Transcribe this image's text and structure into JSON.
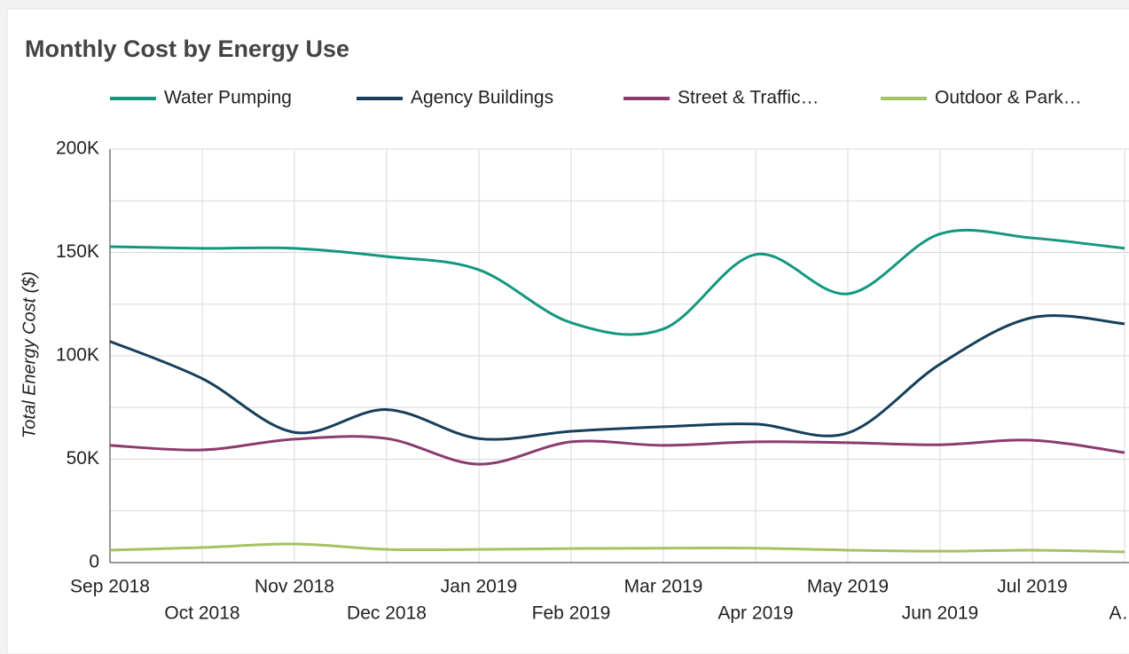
{
  "chart_data": {
    "type": "line",
    "title": "Monthly Cost by Energy Use",
    "y_label": "Total Energy Cost ($)",
    "categories": [
      "Sep 2018",
      "Oct 2018",
      "Nov 2018",
      "Dec 2018",
      "Jan 2019",
      "Feb 2019",
      "Mar 2019",
      "Apr 2019",
      "May 2019",
      "Jun 2019",
      "Jul 2019",
      "A…"
    ],
    "series": [
      {
        "name": "Water Pumping",
        "color": "#14977f",
        "values": [
          152800,
          152000,
          152000,
          148000,
          141600,
          116000,
          113000,
          149000,
          130000,
          159000,
          157000,
          152000
        ]
      },
      {
        "name": "Agency Buildings",
        "color": "#173f5b",
        "values": [
          107000,
          89000,
          63000,
          74000,
          60000,
          63500,
          65700,
          67000,
          62700,
          96000,
          118500,
          115500
        ]
      },
      {
        "name": "Street & Traffic…",
        "color": "#8b3b6f",
        "values": [
          56700,
          54500,
          59700,
          60000,
          47600,
          58400,
          56700,
          58400,
          58000,
          57000,
          59200,
          53200
        ]
      },
      {
        "name": "Outdoor & Park…",
        "color": "#a3c364",
        "values": [
          6000,
          7300,
          9000,
          6400,
          6400,
          6800,
          7000,
          7000,
          6000,
          5500,
          6000,
          5200
        ]
      }
    ],
    "ylim": [
      0,
      200000
    ],
    "yticks": [
      0,
      {
        "value": 50000,
        "label": "50K"
      },
      {
        "value": 100000,
        "label": "100K"
      },
      {
        "value": 150000,
        "label": "150K"
      },
      {
        "value": 200000,
        "label": "200K"
      }
    ],
    "minor_yticks": [
      25000,
      75000,
      125000,
      175000
    ],
    "grid": true,
    "legend": "top"
  }
}
